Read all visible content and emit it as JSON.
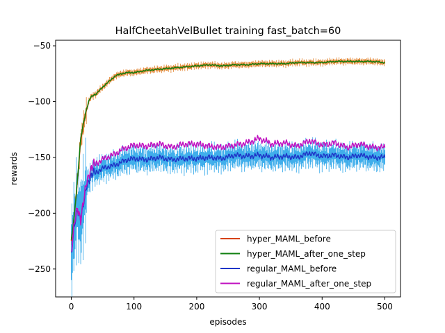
{
  "chart_data": {
    "type": "line",
    "title": "HalfCheetahVelBullet training fast_batch=60",
    "xlabel": "episodes",
    "ylabel": "rewards",
    "xlim": [
      -25,
      525
    ],
    "ylim": [
      -275,
      -45
    ],
    "xticks": [
      0,
      100,
      200,
      300,
      400,
      500
    ],
    "yticks": [
      -250,
      -200,
      -150,
      -100,
      -50
    ],
    "xtick_labels": [
      "0",
      "100",
      "200",
      "300",
      "400",
      "500"
    ],
    "ytick_labels": [
      "−250",
      "−200",
      "−150",
      "−100",
      "−50"
    ],
    "grid": false,
    "legend_position": "lower-right",
    "series": [
      {
        "name": "hyper_MAML_before",
        "color": "#d6420f",
        "band_color": "#e07b20",
        "x": [
          0,
          5,
          10,
          15,
          20,
          25,
          30,
          35,
          40,
          50,
          60,
          70,
          80,
          90,
          100,
          120,
          140,
          160,
          180,
          200,
          220,
          240,
          260,
          280,
          300,
          320,
          340,
          360,
          380,
          400,
          420,
          440,
          460,
          480,
          500
        ],
        "values": [
          -226,
          -200,
          -170,
          -135,
          -118,
          -106,
          -97,
          -94,
          -93,
          -87,
          -82,
          -77,
          -75,
          -74,
          -74,
          -72,
          -71,
          -70,
          -69,
          -68,
          -67,
          -68,
          -67,
          -67,
          -66,
          -66,
          -66,
          -65,
          -65,
          -65,
          -64,
          -64,
          -64,
          -64,
          -65
        ]
      },
      {
        "name": "hyper_MAML_after_one_step",
        "color": "#108010",
        "x": [
          0,
          5,
          10,
          15,
          20,
          25,
          30,
          35,
          40,
          50,
          60,
          70,
          80,
          90,
          100,
          120,
          140,
          160,
          180,
          200,
          220,
          240,
          260,
          280,
          300,
          320,
          340,
          360,
          380,
          400,
          420,
          440,
          460,
          480,
          500
        ],
        "values": [
          -225,
          -200,
          -168,
          -133,
          -117,
          -105,
          -97,
          -94,
          -93,
          -87,
          -82,
          -77,
          -75,
          -74,
          -74,
          -72,
          -71,
          -70,
          -69,
          -68,
          -67,
          -68,
          -67,
          -67,
          -66,
          -66,
          -66,
          -65,
          -65,
          -65,
          -64,
          -64,
          -64,
          -64,
          -65
        ]
      },
      {
        "name": "regular_MAML_before",
        "color": "#1f35c8",
        "band_color": "#1ea0e8",
        "x": [
          0,
          5,
          10,
          15,
          20,
          25,
          30,
          35,
          40,
          50,
          60,
          70,
          80,
          90,
          100,
          120,
          140,
          160,
          180,
          200,
          220,
          240,
          260,
          280,
          300,
          320,
          340,
          360,
          380,
          400,
          420,
          440,
          460,
          480,
          500
        ],
        "values": [
          -236,
          -212,
          -196,
          -204,
          -191,
          -174,
          -167,
          -165,
          -163,
          -160,
          -158,
          -157,
          -154,
          -152,
          -151,
          -152,
          -150,
          -152,
          -151,
          -151,
          -150,
          -151,
          -148,
          -149,
          -148,
          -150,
          -149,
          -150,
          -146,
          -149,
          -148,
          -150,
          -148,
          -150,
          -150
        ]
      },
      {
        "name": "regular_MAML_after_one_step",
        "color": "#c010c0",
        "x": [
          0,
          5,
          10,
          15,
          20,
          25,
          30,
          35,
          40,
          50,
          60,
          70,
          80,
          90,
          100,
          120,
          140,
          160,
          180,
          200,
          220,
          240,
          260,
          280,
          300,
          320,
          340,
          360,
          380,
          400,
          420,
          440,
          460,
          480,
          500
        ],
        "values": [
          -235,
          -210,
          -194,
          -205,
          -189,
          -170,
          -161,
          -158,
          -155,
          -152,
          -149,
          -147,
          -143,
          -141,
          -139,
          -140,
          -138,
          -141,
          -138,
          -138,
          -140,
          -141,
          -139,
          -137,
          -133,
          -138,
          -137,
          -140,
          -135,
          -139,
          -137,
          -141,
          -138,
          -141,
          -141
        ]
      }
    ]
  }
}
